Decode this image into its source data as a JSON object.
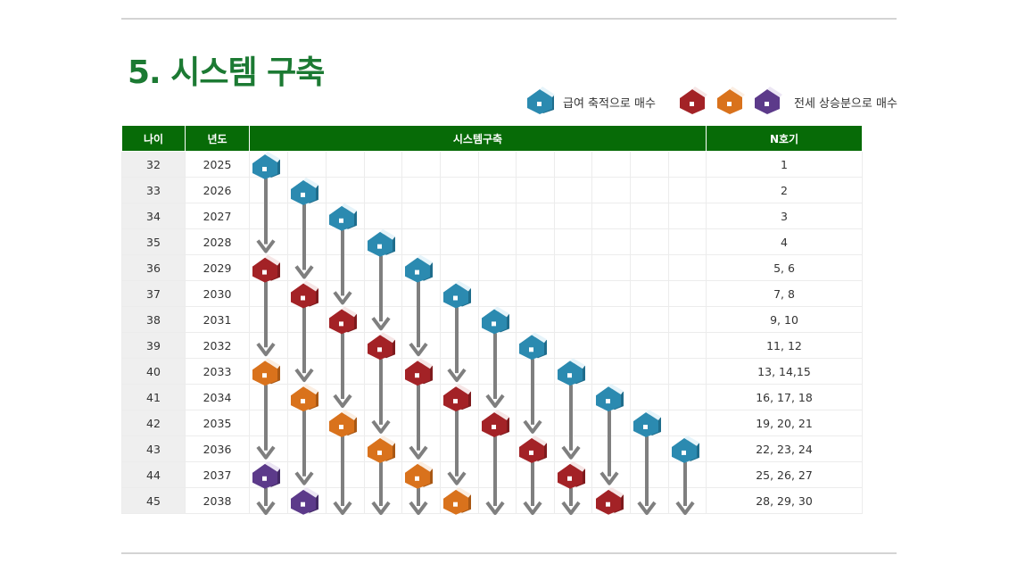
{
  "title": "5. 시스템 구축",
  "legend": {
    "salary_label": "급여 축적으로 매수",
    "equity_label": "전세 상승분으로 매수"
  },
  "colors": {
    "title": "#1c7a33",
    "header_bg": "#076b07",
    "teal": "#2b8ab0",
    "red": "#a32226",
    "orange": "#d9721c",
    "purple": "#5c3a8a",
    "arrow": "#7f7f7f"
  },
  "icons": {
    "house": "house-icon",
    "arrow": "arrow-down-icon"
  },
  "table": {
    "headers": {
      "age": "나이",
      "year": "년도",
      "system": "시스템구축",
      "n": "N호기"
    },
    "rows": [
      {
        "age": "32",
        "year": "2025",
        "n": "1"
      },
      {
        "age": "33",
        "year": "2026",
        "n": "2"
      },
      {
        "age": "34",
        "year": "2027",
        "n": "3"
      },
      {
        "age": "35",
        "year": "2028",
        "n": "4"
      },
      {
        "age": "36",
        "year": "2029",
        "n": "5, 6"
      },
      {
        "age": "37",
        "year": "2030",
        "n": "7, 8"
      },
      {
        "age": "38",
        "year": "2031",
        "n": "9, 10"
      },
      {
        "age": "39",
        "year": "2032",
        "n": "11, 12"
      },
      {
        "age": "40",
        "year": "2033",
        "n": "13, 14,15"
      },
      {
        "age": "41",
        "year": "2034",
        "n": "16, 17, 18"
      },
      {
        "age": "42",
        "year": "2035",
        "n": "19, 20, 21"
      },
      {
        "age": "43",
        "year": "2036",
        "n": "22, 23, 24"
      },
      {
        "age": "44",
        "year": "2037",
        "n": "25, 26, 27"
      },
      {
        "age": "45",
        "year": "2038",
        "n": "28, 29, 30"
      }
    ]
  },
  "houses": [
    {
      "column": 1,
      "row": 0,
      "type": "teal"
    },
    {
      "column": 2,
      "row": 1,
      "type": "teal"
    },
    {
      "column": 3,
      "row": 2,
      "type": "teal"
    },
    {
      "column": 4,
      "row": 3,
      "type": "teal"
    },
    {
      "column": 5,
      "row": 4,
      "type": "teal"
    },
    {
      "column": 6,
      "row": 5,
      "type": "teal"
    },
    {
      "column": 7,
      "row": 6,
      "type": "teal"
    },
    {
      "column": 8,
      "row": 7,
      "type": "teal"
    },
    {
      "column": 9,
      "row": 8,
      "type": "teal"
    },
    {
      "column": 10,
      "row": 9,
      "type": "teal"
    },
    {
      "column": 11,
      "row": 10,
      "type": "teal"
    },
    {
      "column": 12,
      "row": 11,
      "type": "teal"
    },
    {
      "column": 1,
      "row": 4,
      "type": "red"
    },
    {
      "column": 2,
      "row": 5,
      "type": "red"
    },
    {
      "column": 3,
      "row": 6,
      "type": "red"
    },
    {
      "column": 4,
      "row": 7,
      "type": "red"
    },
    {
      "column": 5,
      "row": 8,
      "type": "red"
    },
    {
      "column": 6,
      "row": 9,
      "type": "red"
    },
    {
      "column": 7,
      "row": 10,
      "type": "red"
    },
    {
      "column": 8,
      "row": 11,
      "type": "red"
    },
    {
      "column": 9,
      "row": 12,
      "type": "red"
    },
    {
      "column": 10,
      "row": 13,
      "type": "red"
    },
    {
      "column": 1,
      "row": 8,
      "type": "orange"
    },
    {
      "column": 2,
      "row": 9,
      "type": "orange"
    },
    {
      "column": 3,
      "row": 10,
      "type": "orange"
    },
    {
      "column": 4,
      "row": 11,
      "type": "orange"
    },
    {
      "column": 5,
      "row": 12,
      "type": "orange"
    },
    {
      "column": 6,
      "row": 13,
      "type": "orange"
    },
    {
      "column": 1,
      "row": 12,
      "type": "purple"
    },
    {
      "column": 2,
      "row": 13,
      "type": "purple"
    }
  ]
}
